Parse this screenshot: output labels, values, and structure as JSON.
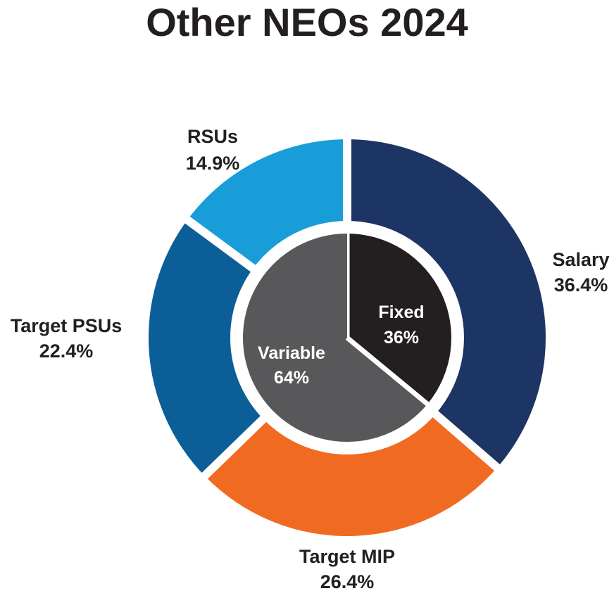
{
  "chart_data": {
    "type": "pie",
    "title": "Other NEOs 2024",
    "outer": {
      "slices": [
        {
          "label": "Salary",
          "value": 36.4,
          "value_label": "36.4%",
          "color": "#1d3564"
        },
        {
          "label": "Target MIP",
          "value": 26.4,
          "value_label": "26.4%",
          "color": "#f06b21"
        },
        {
          "label": "Target PSUs",
          "value": 22.4,
          "value_label": "22.4%",
          "color": "#0c5e98"
        },
        {
          "label": "RSUs",
          "value": 14.9,
          "value_label": "14.9%",
          "color": "#199dd8"
        }
      ]
    },
    "inner": {
      "slices": [
        {
          "label": "Fixed",
          "value": 36,
          "value_label": "36%",
          "color": "#231f20"
        },
        {
          "label": "Variable",
          "value": 64,
          "value_label": "64%",
          "color": "#58585a"
        }
      ]
    }
  }
}
